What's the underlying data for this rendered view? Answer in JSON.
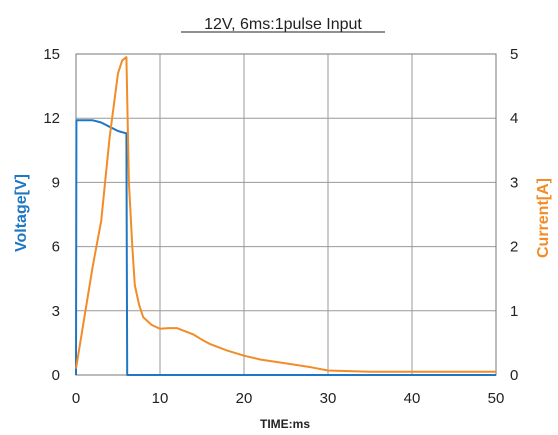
{
  "chart_data": {
    "type": "line",
    "title": "12V, 6ms:1pulse Input",
    "xlabel": "TIME:ms",
    "ylabel_left": "Voltage[V]",
    "ylabel_right": "Current[A]",
    "xlim": [
      0,
      50
    ],
    "ylim_left": [
      0,
      15
    ],
    "ylim_right": [
      0,
      5
    ],
    "xticks": [
      "0",
      "10",
      "20",
      "30",
      "40",
      "50"
    ],
    "yticks_left": [
      "0",
      "3",
      "6",
      "9",
      "12",
      "15"
    ],
    "yticks_right": [
      "0",
      "1",
      "2",
      "3",
      "4",
      "5"
    ],
    "grid": true,
    "colors": {
      "voltage": "#1f77c4",
      "current": "#f28c28",
      "grid": "#999999"
    },
    "series": [
      {
        "key": "voltage",
        "axis": "left",
        "x": [
          0,
          0.05,
          0.5,
          1,
          2,
          3,
          4,
          5,
          5.9,
          6.0,
          6.1,
          10,
          20,
          30,
          40,
          50
        ],
        "y": [
          0,
          11.9,
          11.9,
          11.9,
          11.9,
          11.8,
          11.6,
          11.4,
          11.3,
          11.3,
          0,
          0,
          0,
          0,
          0,
          0
        ]
      },
      {
        "key": "current",
        "axis": "right",
        "x": [
          0,
          1,
          2,
          3,
          4,
          5,
          5.5,
          6,
          6.3,
          6.7,
          7,
          7.5,
          8,
          9,
          10,
          11,
          12,
          13,
          14,
          15,
          16,
          18,
          20,
          22,
          25,
          28,
          30,
          35,
          40,
          45,
          50
        ],
        "y": [
          0.1,
          0.9,
          1.7,
          2.4,
          3.7,
          4.7,
          4.9,
          4.95,
          3.0,
          2.0,
          1.4,
          1.1,
          0.9,
          0.78,
          0.72,
          0.73,
          0.73,
          0.68,
          0.63,
          0.55,
          0.48,
          0.38,
          0.3,
          0.24,
          0.18,
          0.12,
          0.07,
          0.05,
          0.05,
          0.05,
          0.05
        ]
      }
    ]
  }
}
